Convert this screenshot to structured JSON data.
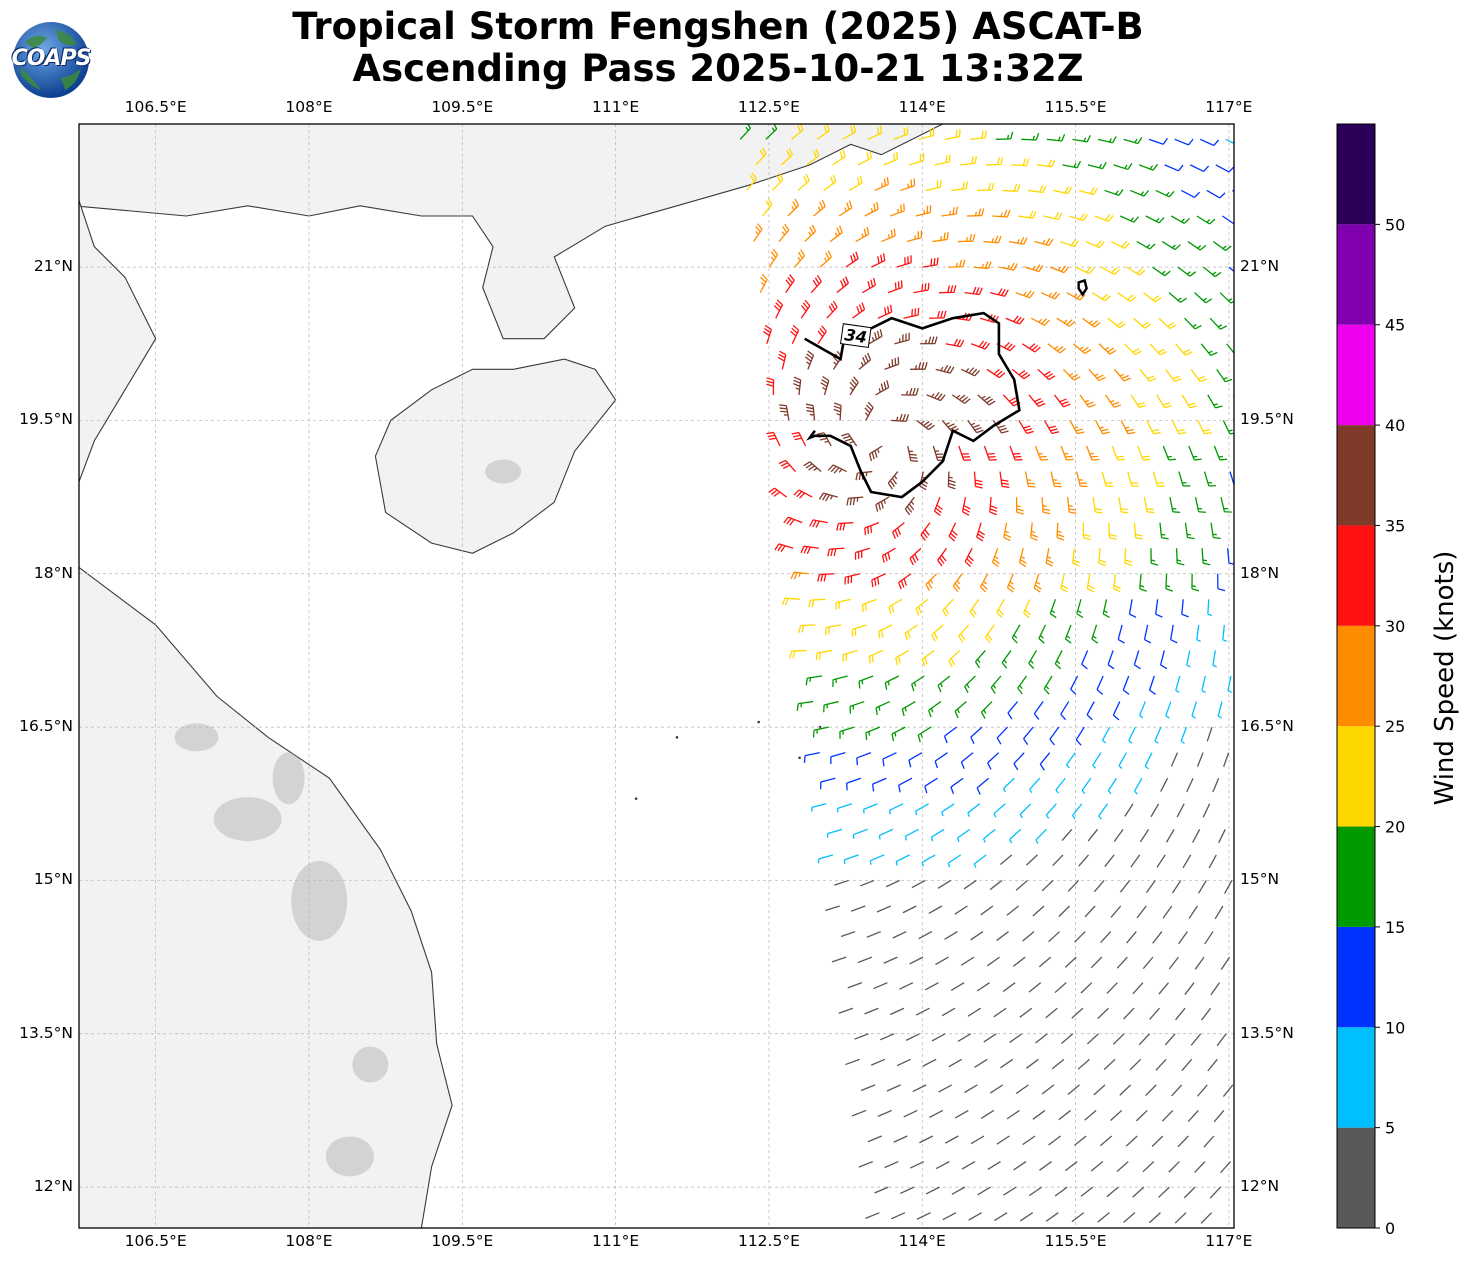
{
  "title": {
    "line1": "Tropical Storm Fengshen (2025) ASCAT-B",
    "line2": "Ascending Pass 2025-10-21 13:32Z"
  },
  "logo": {
    "text": "COAPS",
    "icon": "globe-icon"
  },
  "map": {
    "projection": "Plate Carree",
    "lon_range": [
      105.75,
      117.05
    ],
    "lat_range": [
      11.6,
      22.4
    ],
    "lon_ticks": [
      "106.5°E",
      "108°E",
      "109.5°E",
      "111°E",
      "112.5°E",
      "114°E",
      "115.5°E",
      "117°E"
    ],
    "lat_ticks": [
      "21°N",
      "19.5°N",
      "18°N",
      "16.5°N",
      "15°N",
      "13.5°N",
      "12°N"
    ],
    "contour_label": "34",
    "gridlines": true
  },
  "colorbar": {
    "label": "Wind Speed (knots)",
    "tick_labels": [
      "0",
      "5",
      "10",
      "15",
      "20",
      "25",
      "30",
      "35",
      "40",
      "45",
      "50"
    ],
    "colors": [
      "#595959",
      "#00bfff",
      "#0033ff",
      "#009900",
      "#ffd700",
      "#ff8c00",
      "#ff1111",
      "#7f3a2a",
      "#ee00ee",
      "#8000b0",
      "#2b0059"
    ]
  },
  "colors": {
    "land": "#f2f2f2",
    "land_high": "#9a9a9a",
    "coast": "#3a3a3a",
    "grid": "#b5b5b5",
    "contour": "#000000"
  },
  "chart_data": {
    "type": "wind-barbs",
    "center_lon": 113.6,
    "center_lat": 19.3,
    "swath_west_lon_at_north": 112.2,
    "swath_west_lon_at_south": 113.6,
    "contour_34kt": "irregular closed region around 112.9–115.0°E, 18.8–20.5°N"
  }
}
